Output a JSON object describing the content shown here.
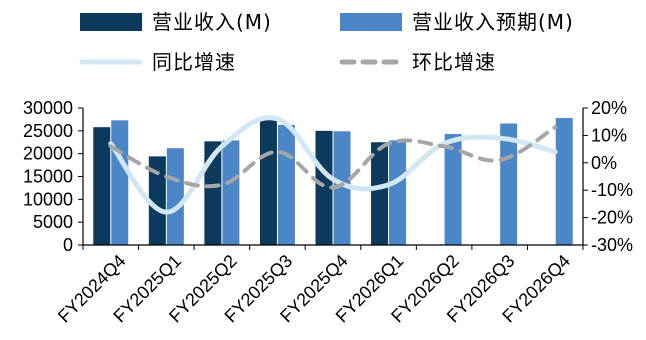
{
  "chart_data": {
    "type": "bar",
    "categories": [
      "FY2024Q4",
      "FY2025Q1",
      "FY2025Q2",
      "FY2025Q3",
      "FY2025Q4",
      "FY2026Q1",
      "FY2026Q2",
      "FY2026Q3",
      "FY2026Q4"
    ],
    "series": [
      {
        "name": "营业收入(M)",
        "kind": "bar",
        "axis": "left",
        "color": "#0b3a5c",
        "values": [
          25800,
          19400,
          22700,
          28100,
          25000,
          22500,
          null,
          null,
          null
        ]
      },
      {
        "name": "营业收入预期(M)",
        "kind": "bar",
        "axis": "left",
        "color": "#4a86c8",
        "values": [
          27300,
          21200,
          22900,
          26300,
          24900,
          22900,
          24300,
          26600,
          27800
        ]
      },
      {
        "name": "同比增速",
        "kind": "line",
        "axis": "right",
        "color": "#d2e6f4",
        "dash": "solid",
        "values": [
          7,
          -18,
          6,
          16,
          -6,
          -8,
          7,
          9,
          4
        ]
      },
      {
        "name": "环比增速",
        "kind": "line",
        "axis": "right",
        "color": "#a6a6a6",
        "dash": "dashed",
        "values": [
          6,
          -5,
          -8,
          4,
          -9,
          7,
          6,
          1,
          13
        ]
      }
    ],
    "yleft": {
      "min": 0,
      "max": 30000,
      "ticks": [
        0,
        5000,
        10000,
        15000,
        20000,
        25000,
        30000
      ]
    },
    "yright": {
      "min": -30,
      "max": 20,
      "ticks": [
        -30,
        -20,
        -10,
        0,
        10,
        20
      ],
      "unit": "%"
    },
    "legend": "top",
    "grid": false
  }
}
